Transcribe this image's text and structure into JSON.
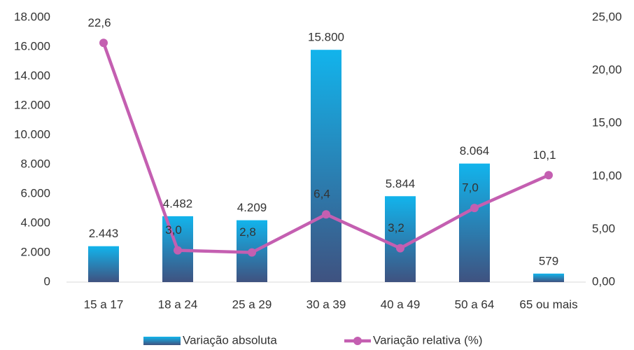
{
  "chart_data": {
    "type": "combo",
    "categories": [
      "15 a 17",
      "18 a 24",
      "25 a 29",
      "30 a 39",
      "40 a 49",
      "50 a 64",
      "65 ou mais"
    ],
    "series": [
      {
        "name": "Variação absoluta",
        "type": "bar",
        "color": "#12b4ec",
        "values": [
          2443,
          4482,
          4209,
          15800,
          5844,
          8064,
          579
        ],
        "value_labels": [
          "2.443",
          "4.482",
          "4.209",
          "15.800",
          "5.844",
          "8.064",
          "579"
        ]
      },
      {
        "name": "Variação relativa (%)",
        "type": "line",
        "axis": "y2",
        "color": "#c45fb1",
        "values": [
          22.6,
          3.0,
          2.8,
          6.4,
          3.2,
          7.0,
          10.1
        ],
        "value_labels": [
          "22,6",
          "3,0",
          "2,8",
          "6,4",
          "3,2",
          "7,0",
          "10,1"
        ]
      }
    ],
    "ylim": [
      0,
      18000
    ],
    "yticks": [
      0,
      {
        "value": 2000,
        "label": "2.000"
      },
      {
        "value": 4000,
        "label": "4.000"
      },
      {
        "value": 6000,
        "label": "6.000"
      },
      {
        "value": 8000,
        "label": "8.000"
      },
      {
        "value": 10000,
        "label": "10.000"
      },
      {
        "value": 12000,
        "label": "12.000"
      },
      {
        "value": 14000,
        "label": "14.000"
      },
      {
        "value": 16000,
        "label": "16.000"
      },
      {
        "value": 18000,
        "label": "18.000"
      }
    ],
    "y2lim": [
      0,
      25
    ],
    "y2ticks": [
      {
        "value": 0,
        "label": "0,00"
      },
      {
        "value": 5,
        "label": "5,00"
      },
      {
        "value": 10,
        "label": "10,00"
      },
      {
        "value": 15,
        "label": "15,00"
      },
      {
        "value": 20,
        "label": "20,00"
      },
      {
        "value": 25,
        "label": "25,00"
      }
    ]
  }
}
